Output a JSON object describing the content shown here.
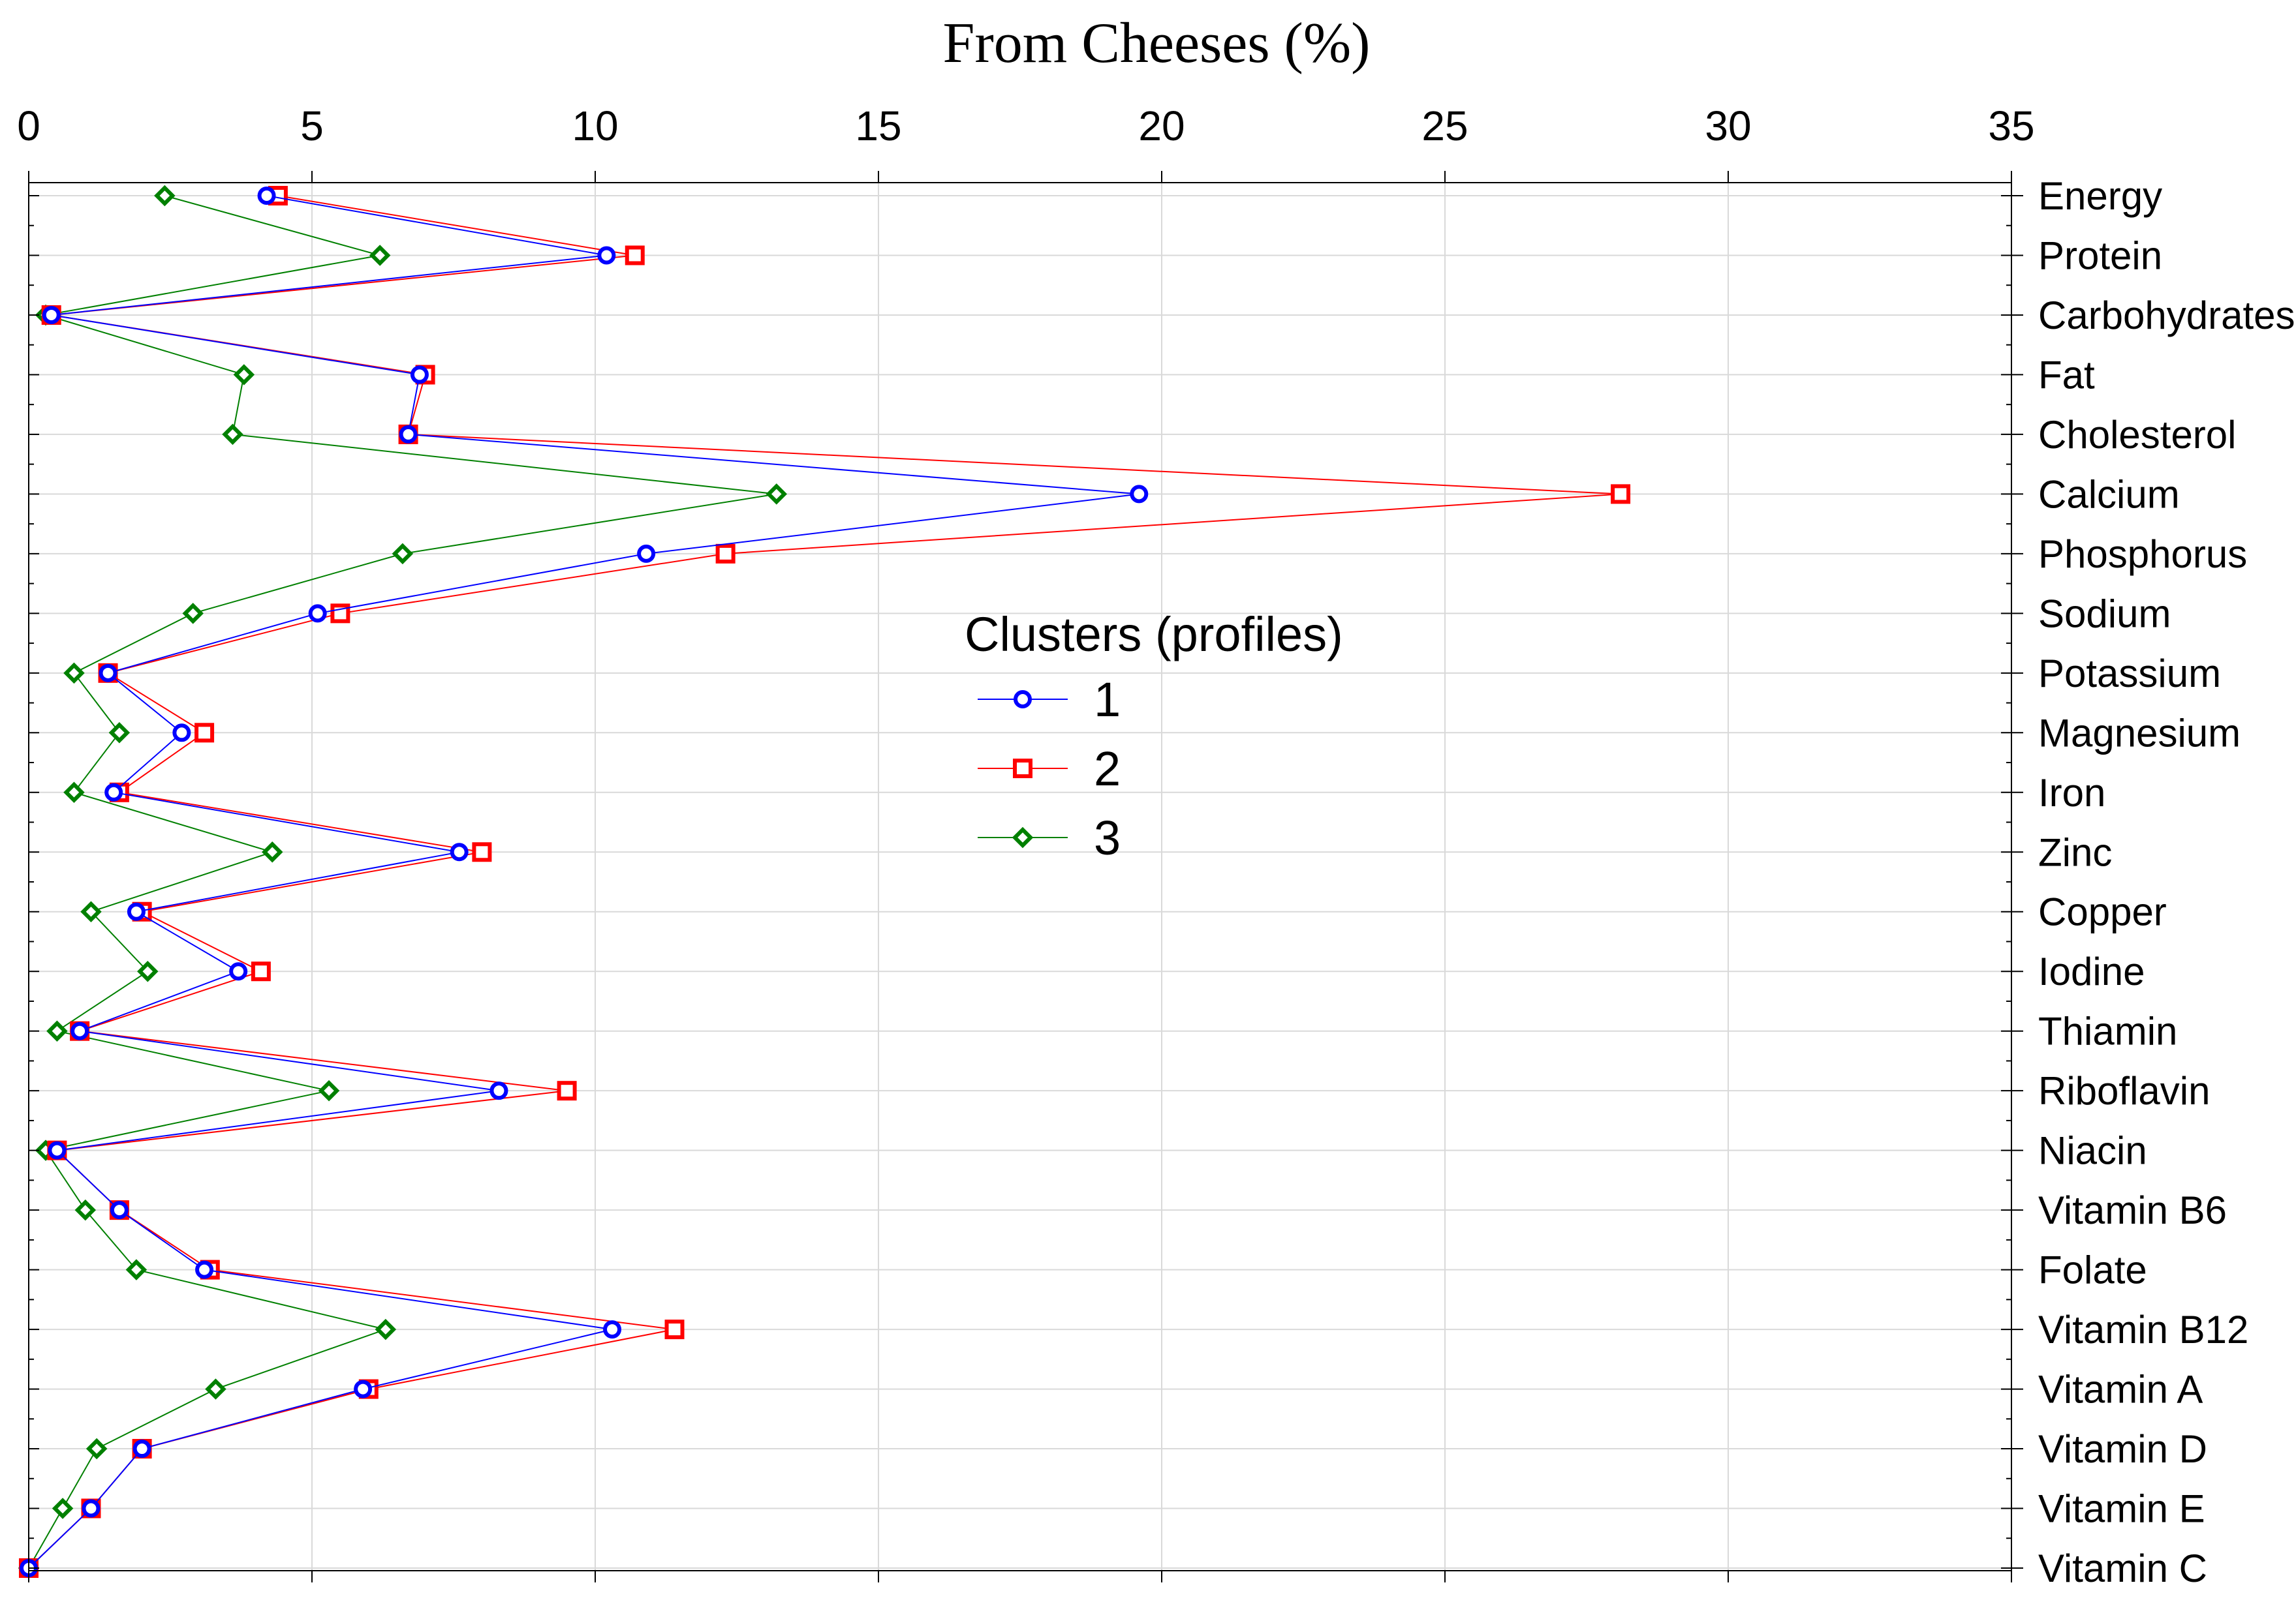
{
  "chart_data": {
    "type": "line",
    "title": "From Cheeses (%)",
    "xlabel": "From Cheeses (%)",
    "ylabel": "",
    "xlim": [
      0,
      35
    ],
    "x_ticks": [
      0,
      5,
      10,
      15,
      20,
      25,
      30,
      35
    ],
    "grid": true,
    "orientation": "horizontal-profile",
    "categories": [
      "Energy",
      "Protein",
      "Carbohydrates",
      "Fat",
      "Cholesterol",
      "Calcium",
      "Phosphorus",
      "Sodium",
      "Potassium",
      "Magnesium",
      "Iron",
      "Zinc",
      "Copper",
      "Iodine",
      "Thiamin",
      "Riboflavin",
      "Niacin",
      "Vitamin B6",
      "Folate",
      "Vitamin B12",
      "Vitamin A",
      "Vitamin D",
      "Vitamin E",
      "Vitamin C"
    ],
    "legend": {
      "title": "Clusters (profiles)",
      "position": "center"
    },
    "series": [
      {
        "name": "1",
        "color": "#0000ff",
        "marker": "circle",
        "values": [
          4.2,
          10.2,
          0.4,
          6.9,
          6.7,
          19.6,
          10.9,
          5.1,
          1.4,
          2.7,
          1.5,
          7.6,
          1.9,
          3.7,
          0.9,
          8.3,
          0.5,
          1.6,
          3.1,
          10.3,
          5.9,
          2.0,
          1.1,
          0.0
        ]
      },
      {
        "name": "2",
        "color": "#ff0000",
        "marker": "square",
        "values": [
          4.4,
          10.7,
          0.4,
          7.0,
          6.7,
          28.1,
          12.3,
          5.5,
          1.4,
          3.1,
          1.6,
          8.0,
          2.0,
          4.1,
          0.9,
          9.5,
          0.5,
          1.6,
          3.2,
          11.4,
          6.0,
          2.0,
          1.1,
          0.0
        ]
      },
      {
        "name": "3",
        "color": "#008000",
        "marker": "diamond",
        "values": [
          2.4,
          6.2,
          0.3,
          3.8,
          3.6,
          13.2,
          6.6,
          2.9,
          0.8,
          1.6,
          0.8,
          4.3,
          1.1,
          2.1,
          0.5,
          5.3,
          0.3,
          1.0,
          1.9,
          6.3,
          3.3,
          1.2,
          0.6,
          0.0
        ]
      }
    ]
  }
}
